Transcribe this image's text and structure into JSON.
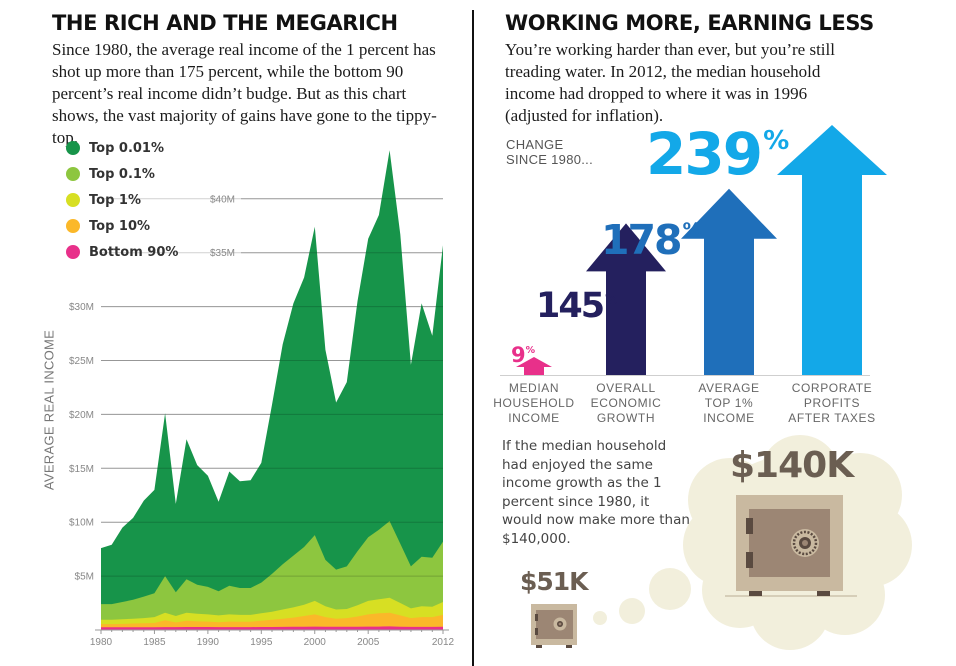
{
  "left_panel": {
    "title": "THE RICH AND THE MEGARICH",
    "body": "Since 1980, the average real income of the 1 percent has shot up more than 175 percent, while the bottom 90 percent’s real income didn’t budge. But as this chart shows, the vast majority of gains have gone to the tippy-top."
  },
  "right_panel": {
    "title": "WORKING MORE, EARNING LESS",
    "body": "You’re working harder than ever, but you’re still treading water. In 2012, the median household income had dropped to where it was in 1996 (adjusted for inflation).",
    "change_label_line1": "CHANGE",
    "change_label_line2": "SINCE 1980...",
    "what_if_text": "If the median household had enjoyed the same income growth as the 1 percent since 1980, it would now make more than $140,000.",
    "safe_big_label": "$140K",
    "safe_small_label": "$51K",
    "colors": {
      "safe_outer": "#c9b9a0",
      "safe_inner": "#9c8674",
      "safe_dark": "#5a4a40",
      "cloud": "#f2efdc",
      "money_text": "#6b5e52"
    }
  },
  "chart_data": [
    {
      "type": "area",
      "stacked": true,
      "title": "",
      "xlabel": "",
      "ylabel": "AVERAGE REAL INCOME",
      "xlim": [
        1980,
        2012
      ],
      "ylim": [
        0,
        45
      ],
      "x_ticks": [
        1980,
        1985,
        1990,
        1995,
        2000,
        2005,
        2012
      ],
      "x_tick_labels": [
        "1980",
        "1985",
        "1990",
        "1995",
        "2000",
        "2005",
        "2012"
      ],
      "y_ticks": [
        5,
        10,
        15,
        20,
        25,
        30,
        35,
        40
      ],
      "y_tick_labels": [
        "$5M",
        "$10M",
        "$15M",
        "$20M",
        "$25M",
        "$30M",
        "$35M",
        "$40M"
      ],
      "y_units": "millions of dollars (series values are the top edge of each colored band)",
      "grid": true,
      "legend_position": "top-left",
      "x": [
        1980,
        1981,
        1982,
        1983,
        1984,
        1985,
        1986,
        1987,
        1988,
        1989,
        1990,
        1991,
        1992,
        1993,
        1994,
        1995,
        1996,
        1997,
        1998,
        1999,
        2000,
        2001,
        2002,
        2003,
        2004,
        2005,
        2006,
        2007,
        2008,
        2009,
        2010,
        2011,
        2012
      ],
      "series": [
        {
          "name": "Top 0.01%",
          "color": "#17944a",
          "values": [
            7.6,
            7.9,
            9.5,
            10.4,
            12.0,
            13.0,
            20.1,
            11.7,
            17.7,
            15.3,
            14.3,
            11.9,
            14.7,
            13.8,
            13.9,
            15.5,
            20.9,
            26.5,
            30.3,
            32.7,
            37.4,
            26.0,
            21.1,
            23.0,
            30.5,
            36.3,
            38.5,
            44.5,
            36.7,
            24.6,
            30.3,
            27.3,
            35.7
          ]
        },
        {
          "name": "Top 0.1%",
          "color": "#8dc63f",
          "values": [
            2.4,
            2.4,
            2.6,
            2.8,
            3.1,
            3.4,
            5.0,
            3.5,
            4.7,
            4.2,
            4.0,
            3.6,
            4.1,
            3.9,
            3.9,
            4.4,
            5.2,
            6.1,
            6.9,
            7.7,
            8.8,
            6.5,
            5.6,
            5.9,
            7.3,
            8.6,
            9.3,
            10.1,
            8.0,
            5.9,
            6.8,
            6.7,
            8.2
          ]
        },
        {
          "name": "Top 1%",
          "color": "#d7df23",
          "values": [
            0.95,
            0.95,
            1.0,
            1.05,
            1.1,
            1.2,
            1.6,
            1.3,
            1.6,
            1.5,
            1.45,
            1.35,
            1.45,
            1.4,
            1.4,
            1.55,
            1.7,
            1.9,
            2.1,
            2.35,
            2.7,
            2.2,
            1.9,
            1.95,
            2.3,
            2.7,
            2.85,
            3.0,
            2.5,
            2.0,
            2.2,
            2.15,
            2.6
          ]
        },
        {
          "name": "Top 10%",
          "color": "#fbb829",
          "values": [
            0.55,
            0.55,
            0.57,
            0.6,
            0.62,
            0.65,
            0.9,
            0.7,
            0.85,
            0.8,
            0.78,
            0.72,
            0.78,
            0.76,
            0.77,
            0.85,
            0.95,
            1.05,
            1.15,
            1.3,
            1.45,
            1.2,
            1.05,
            1.1,
            1.25,
            1.45,
            1.55,
            1.6,
            1.35,
            1.1,
            1.2,
            1.2,
            1.4
          ]
        },
        {
          "name": "Bottom 90%",
          "color": "#e8308a",
          "values": [
            0.25,
            0.25,
            0.25,
            0.25,
            0.26,
            0.26,
            0.27,
            0.27,
            0.28,
            0.28,
            0.28,
            0.27,
            0.27,
            0.27,
            0.27,
            0.28,
            0.28,
            0.29,
            0.3,
            0.31,
            0.32,
            0.31,
            0.3,
            0.3,
            0.31,
            0.32,
            0.32,
            0.33,
            0.31,
            0.29,
            0.29,
            0.29,
            0.3
          ]
        }
      ]
    },
    {
      "type": "bar",
      "title": "CHANGE SINCE 1980...",
      "style": "arrows",
      "categories": [
        "MEDIAN HOUSEHOLD INCOME",
        "OVERALL ECONOMIC GROWTH",
        "AVERAGE TOP 1% INCOME",
        "CORPORATE PROFITS AFTER TAXES"
      ],
      "category_lines": [
        [
          "MEDIAN",
          "HOUSEHOLD",
          "INCOME"
        ],
        [
          "OVERALL",
          "ECONOMIC",
          "GROWTH"
        ],
        [
          "AVERAGE",
          "TOP 1%",
          "INCOME"
        ],
        [
          "CORPORATE",
          "PROFITS",
          "AFTER TAXES"
        ]
      ],
      "values": [
        9,
        145,
        178,
        239
      ],
      "value_labels": [
        "9",
        "145",
        "178",
        "239"
      ],
      "value_suffix": "%",
      "colors": [
        "#e8308a",
        "#24205e",
        "#1f6fba",
        "#13a8e8"
      ],
      "units": "percent change",
      "ylim": [
        0,
        239
      ]
    }
  ]
}
